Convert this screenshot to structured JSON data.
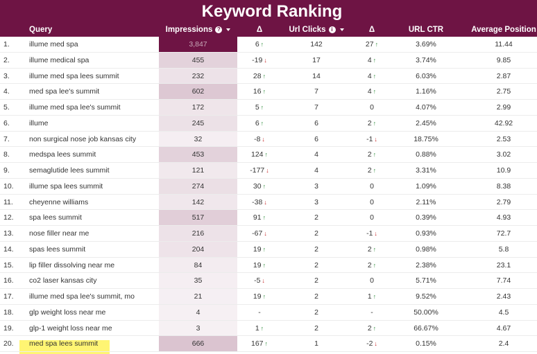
{
  "title": "Keyword Ranking",
  "columns": {
    "query": "Query",
    "impressions": "Impressions",
    "delta1": "Δ",
    "clicks": "Url Clicks",
    "delta2": "Δ",
    "ctr": "URL CTR",
    "position": "Average Position"
  },
  "icons": {
    "help": "question-circle-icon",
    "info": "info-circle-icon",
    "sort": "caret-down-icon",
    "up": "arrow-up-icon",
    "down": "arrow-down-icon"
  },
  "colors": {
    "header": "#6e1444",
    "up": "#2e8b3a",
    "down": "#c62828",
    "highlight": "#fff35a"
  },
  "rows": [
    {
      "num": "1.",
      "query": "illume med spa",
      "impressions": "3,847",
      "imp_level": 1.0,
      "d1": "6",
      "d1_dir": "up",
      "clicks": "142",
      "d2": "27",
      "d2_dir": "up",
      "ctr": "3.69%",
      "pos": "11.44"
    },
    {
      "num": "2.",
      "query": "illume medical spa",
      "impressions": "455",
      "imp_level": 0.12,
      "d1": "-19",
      "d1_dir": "down",
      "clicks": "17",
      "d2": "4",
      "d2_dir": "up",
      "ctr": "3.74%",
      "pos": "9.85"
    },
    {
      "num": "3.",
      "query": "illume med spa lees summit",
      "impressions": "232",
      "imp_level": 0.06,
      "d1": "28",
      "d1_dir": "up",
      "clicks": "14",
      "d2": "4",
      "d2_dir": "up",
      "ctr": "6.03%",
      "pos": "2.87"
    },
    {
      "num": "4.",
      "query": "med spa lee's summit",
      "impressions": "602",
      "imp_level": 0.16,
      "d1": "16",
      "d1_dir": "up",
      "clicks": "7",
      "d2": "4",
      "d2_dir": "up",
      "ctr": "1.16%",
      "pos": "2.75"
    },
    {
      "num": "5.",
      "query": "illume med spa lee's summit",
      "impressions": "172",
      "imp_level": 0.045,
      "d1": "5",
      "d1_dir": "up",
      "clicks": "7",
      "d2": "0",
      "d2_dir": "",
      "ctr": "4.07%",
      "pos": "2.99"
    },
    {
      "num": "6.",
      "query": "illume",
      "impressions": "245",
      "imp_level": 0.064,
      "d1": "6",
      "d1_dir": "up",
      "clicks": "6",
      "d2": "2",
      "d2_dir": "up",
      "ctr": "2.45%",
      "pos": "42.92"
    },
    {
      "num": "7.",
      "query": "non surgical nose job kansas city",
      "impressions": "32",
      "imp_level": 0.008,
      "d1": "-8",
      "d1_dir": "down",
      "clicks": "6",
      "d2": "-1",
      "d2_dir": "down",
      "ctr": "18.75%",
      "pos": "2.53"
    },
    {
      "num": "8.",
      "query": "medspa lees summit",
      "impressions": "453",
      "imp_level": 0.12,
      "d1": "124",
      "d1_dir": "up",
      "clicks": "4",
      "d2": "2",
      "d2_dir": "up",
      "ctr": "0.88%",
      "pos": "3.02"
    },
    {
      "num": "9.",
      "query": "semaglutide lees summit",
      "impressions": "121",
      "imp_level": 0.031,
      "d1": "-177",
      "d1_dir": "down",
      "clicks": "4",
      "d2": "2",
      "d2_dir": "up",
      "ctr": "3.31%",
      "pos": "10.9"
    },
    {
      "num": "10.",
      "query": "illume spa lees summit",
      "impressions": "274",
      "imp_level": 0.071,
      "d1": "30",
      "d1_dir": "up",
      "clicks": "3",
      "d2": "0",
      "d2_dir": "",
      "ctr": "1.09%",
      "pos": "8.38"
    },
    {
      "num": "11.",
      "query": "cheyenne williams",
      "impressions": "142",
      "imp_level": 0.037,
      "d1": "-38",
      "d1_dir": "down",
      "clicks": "3",
      "d2": "0",
      "d2_dir": "",
      "ctr": "2.11%",
      "pos": "2.79"
    },
    {
      "num": "12.",
      "query": "spa lees summit",
      "impressions": "517",
      "imp_level": 0.134,
      "d1": "91",
      "d1_dir": "up",
      "clicks": "2",
      "d2": "0",
      "d2_dir": "",
      "ctr": "0.39%",
      "pos": "4.93"
    },
    {
      "num": "13.",
      "query": "nose filler near me",
      "impressions": "216",
      "imp_level": 0.056,
      "d1": "-67",
      "d1_dir": "down",
      "clicks": "2",
      "d2": "-1",
      "d2_dir": "down",
      "ctr": "0.93%",
      "pos": "72.7"
    },
    {
      "num": "14.",
      "query": "spas lees summit",
      "impressions": "204",
      "imp_level": 0.053,
      "d1": "19",
      "d1_dir": "up",
      "clicks": "2",
      "d2": "2",
      "d2_dir": "up",
      "ctr": "0.98%",
      "pos": "5.8"
    },
    {
      "num": "15.",
      "query": "lip filler dissolving near me",
      "impressions": "84",
      "imp_level": 0.022,
      "d1": "19",
      "d1_dir": "up",
      "clicks": "2",
      "d2": "2",
      "d2_dir": "up",
      "ctr": "2.38%",
      "pos": "23.1"
    },
    {
      "num": "16.",
      "query": "co2 laser kansas city",
      "impressions": "35",
      "imp_level": 0.009,
      "d1": "-5",
      "d1_dir": "down",
      "clicks": "2",
      "d2": "0",
      "d2_dir": "",
      "ctr": "5.71%",
      "pos": "7.74"
    },
    {
      "num": "17.",
      "query": "illume med spa lee's summit, mo",
      "impressions": "21",
      "imp_level": 0.005,
      "d1": "19",
      "d1_dir": "up",
      "clicks": "2",
      "d2": "1",
      "d2_dir": "up",
      "ctr": "9.52%",
      "pos": "2.43"
    },
    {
      "num": "18.",
      "query": "glp weight loss near me",
      "impressions": "4",
      "imp_level": 0.001,
      "d1": "-",
      "d1_dir": "",
      "clicks": "2",
      "d2": "-",
      "d2_dir": "",
      "ctr": "50.00%",
      "pos": "4.5"
    },
    {
      "num": "19.",
      "query": "glp-1 weight loss near me",
      "impressions": "3",
      "imp_level": 0.001,
      "d1": "1",
      "d1_dir": "up",
      "clicks": "2",
      "d2": "2",
      "d2_dir": "up",
      "ctr": "66.67%",
      "pos": "4.67"
    },
    {
      "num": "20.",
      "query": "med spa lees summit",
      "impressions": "666",
      "imp_level": 0.173,
      "d1": "167",
      "d1_dir": "up",
      "clicks": "1",
      "d2": "-2",
      "d2_dir": "down",
      "ctr": "0.15%",
      "pos": "2.4",
      "highlighted": true
    }
  ]
}
